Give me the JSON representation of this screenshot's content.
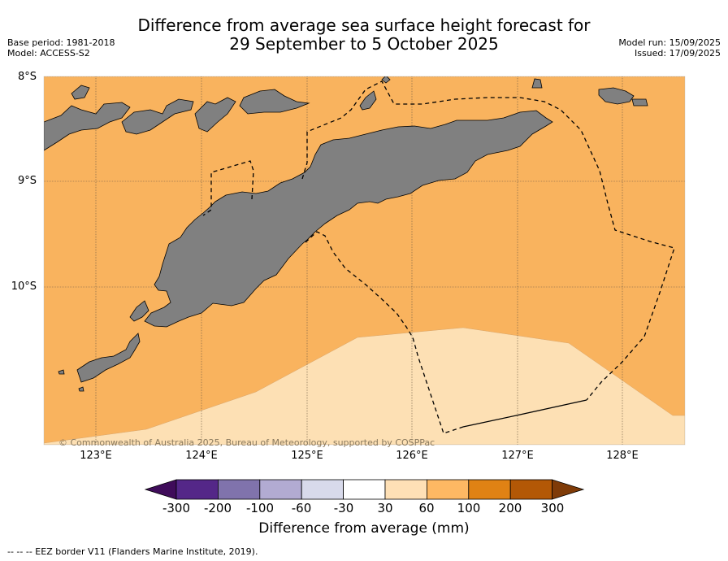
{
  "title_line1": "Difference from average sea surface height forecast for",
  "title_line2": "29 September to 5 October 2025",
  "meta_left": {
    "base_period": "Base period: 1981-2018",
    "model": "Model: ACCESS-S2"
  },
  "meta_right": {
    "model_run": "Model run: 15/09/2025",
    "issued": "Issued: 17/09/2025"
  },
  "map": {
    "lat_labels": [
      "8°S",
      "9°S",
      "10°S"
    ],
    "lon_labels": [
      "123°E",
      "124°E",
      "125°E",
      "126°E",
      "127°E",
      "128°E"
    ],
    "copyright": "© Commonwealth of Australia 2025, Bureau of Meteorology, supported by COSPPac",
    "colors": {
      "band_60_100": "#f9b35e",
      "band_30_60": "#fde0b4",
      "land": "#808080",
      "eez_line": "#000000"
    }
  },
  "colorbar": {
    "ticks": [
      "-300",
      "-200",
      "-100",
      "-60",
      "-30",
      "30",
      "60",
      "100",
      "200",
      "300"
    ],
    "colors": [
      "#3f0c5a",
      "#542788",
      "#8073ac",
      "#b2abd2",
      "#d8daeb",
      "#ffffff",
      "#fee0b6",
      "#fdb863",
      "#e08214",
      "#b35806",
      "#7f3b08"
    ],
    "label": "Difference from average (mm)"
  },
  "legend": "--  --  -- EEZ border V11 (Flanders Marine Institute, 2019)."
}
